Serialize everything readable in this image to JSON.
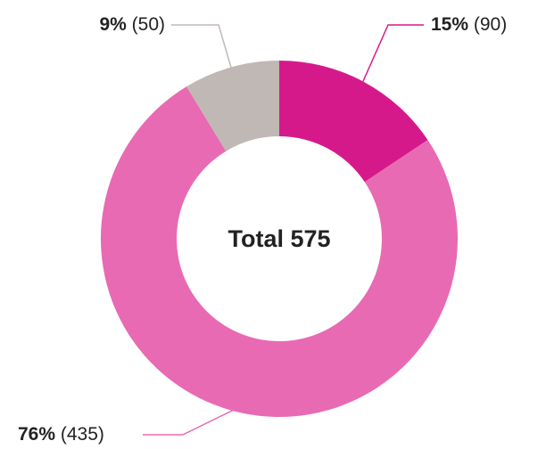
{
  "chart_data": {
    "type": "donut",
    "center_text": "Total 575",
    "values": [
      90,
      435,
      50
    ],
    "value_labels": [
      "(90)",
      "(435)",
      "(50)"
    ],
    "percent_labels": [
      "15%",
      "76%",
      "9%"
    ],
    "colors": [
      "#d6198a",
      "#e86ab3",
      "#c0b8b5"
    ]
  }
}
